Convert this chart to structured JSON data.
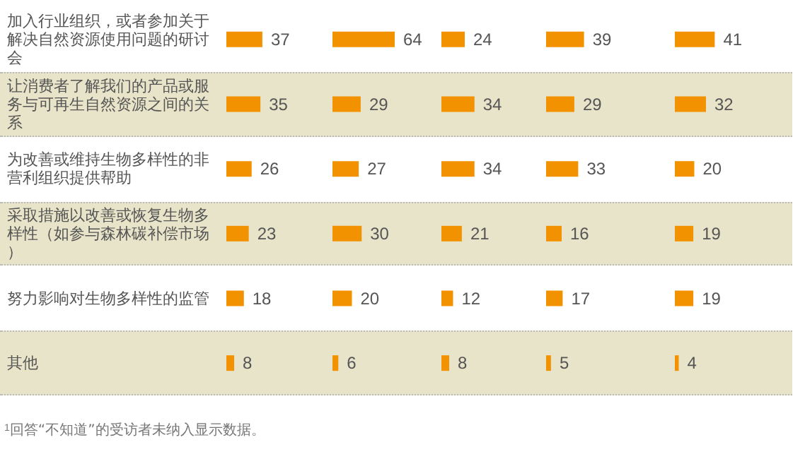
{
  "chart_data": [
    {
      "type": "bar",
      "orientation": "horizontal",
      "categories": [
        "加入行业组织，或者参加关于解决自然资源使用问题的研讨会",
        "让消费者了解我们的产品或服务与可再生自然资源之间的关系",
        "为改善或维持生物多样性的非营利组织提供帮助",
        "采取措施以改善或恢复生物多样性（如参与森林碳补偿市场）",
        "努力影响对生物多样性的监管",
        "其他"
      ],
      "values": [
        37,
        35,
        26,
        23,
        18,
        8
      ],
      "color": "#f39200",
      "data_labels": true,
      "tick_labels": "y",
      "annotations": [
        "$^{1}$回答“不知道”的受访者未纳入显示数据。"
      ]
    },
    {
      "type": "bar",
      "orientation": "horizontal",
      "categories": [
        "加入行业组织，或者参加关于解决自然资源使用问题的研讨会",
        "让消费者了解我们的产品或服务与可再生自然资源之间的关系",
        "为改善或维持生物多样性的非营利组织提供帮助",
        "采取措施以改善或恢复生物多样性（如参与森林碳补偿市场）",
        "努力影响对生物多样性的监管",
        "其他"
      ],
      "values": [
        64,
        29,
        27,
        30,
        20,
        6
      ],
      "color": "#f39200",
      "data_labels": true,
      "tick_labels": false
    },
    {
      "type": "bar",
      "orientation": "horizontal",
      "categories": [
        "加入行业组织，或者参加关于解决自然资源使用问题的研讨会",
        "让消费者了解我们的产品或服务与可再生自然资源之间的关系",
        "为改善或维持生物多样性的非营利组织提供帮助",
        "采取措施以改善或恢复生物多样性（如参与森林碳补偿市场）",
        "努力影响对生物多样性的监管",
        "其他"
      ],
      "values": [
        24,
        34,
        34,
        21,
        12,
        8
      ],
      "color": "#f39200",
      "data_labels": true,
      "tick_labels": false
    },
    {
      "type": "bar",
      "orientation": "horizontal",
      "categories": [
        "加入行业组织，或者参加关于解决自然资源使用问题的研讨会",
        "让消费者了解我们的产品或服务与可再生自然资源之间的关系",
        "为改善或维持生物多样性的非营利组织提供帮助",
        "采取措施以改善或恢复生物多样性（如参与森林碳补偿市场）",
        "努力影响对生物多样性的监管",
        "其他"
      ],
      "values": [
        39,
        29,
        33,
        16,
        17,
        5
      ],
      "color": "#f39200",
      "data_labels": true,
      "tick_labels": false
    },
    {
      "type": "bar",
      "orientation": "horizontal",
      "categories": [
        "加入行业组织，或者参加关于解决自然资源使用问题的研讨会",
        "让消费者了解我们的产品或服务与可再生自然资源之间的关系",
        "为改善或维持生物多样性的非营利组织提供帮助",
        "采取措施以改善或恢复生物多样性（如参与森林碳补偿市场）",
        "努力影响对生物多样性的监管",
        "其他"
      ],
      "values": [
        41,
        32,
        20,
        19,
        19,
        4
      ],
      "color": "#f39200",
      "data_labels": true,
      "tick_labels": false
    }
  ]
}
